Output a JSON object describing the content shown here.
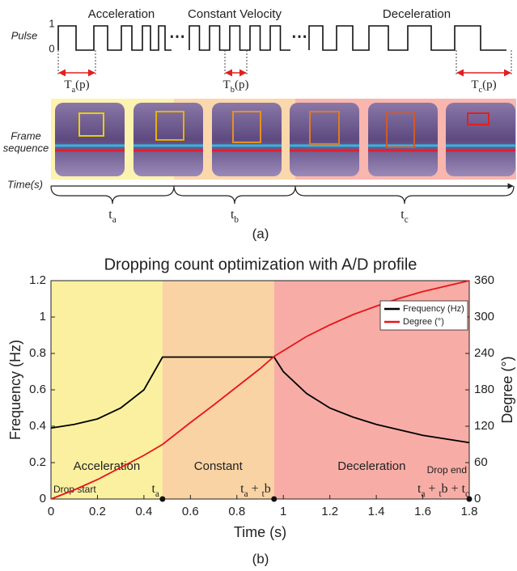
{
  "figure_a": {
    "phases": [
      "Acceleration",
      "Constant Velocity",
      "Deceleration"
    ],
    "pulse_label": "Pulse",
    "levels": [
      "1",
      "0"
    ],
    "gaps": [
      "⋯",
      "⋯"
    ],
    "periods": [
      [
        "T",
        "a",
        "(p)"
      ],
      [
        "T",
        "b",
        "(p)"
      ],
      [
        "T",
        "c",
        "(p)"
      ]
    ],
    "frame_label": [
      "Frame",
      "sequence"
    ],
    "time_label": "Time(s)",
    "durations": [
      [
        "t",
        "a"
      ],
      [
        "t",
        "b"
      ],
      [
        "t",
        "c"
      ]
    ],
    "caption": "(a)"
  },
  "chart_data": {
    "type": "line",
    "title": "Dropping count optimization with A/D profile",
    "xlabel": "Time (s)",
    "ylabel": "Frequency (Hz)",
    "y2label": "Degree (°)",
    "xlim": [
      0,
      1.8
    ],
    "xticks": [
      0,
      0.2,
      0.4,
      0.6,
      0.8,
      1,
      1.2,
      1.4,
      1.6,
      1.8
    ],
    "ylim": [
      0,
      1.2
    ],
    "yticks": [
      0,
      0.2,
      0.4,
      0.6,
      0.8,
      1,
      1.2
    ],
    "y2lim": [
      0,
      360
    ],
    "y2ticks": [
      0,
      60,
      120,
      180,
      240,
      300,
      360
    ],
    "legend": "upper right",
    "series": [
      {
        "name": "Frequency (Hz)",
        "color": "#000000",
        "x": [
          0,
          0.1,
          0.2,
          0.3,
          0.4,
          0.48,
          0.96,
          1.0,
          1.1,
          1.2,
          1.3,
          1.4,
          1.5,
          1.6,
          1.7,
          1.8
        ],
        "values": [
          0.39,
          0.41,
          0.44,
          0.5,
          0.6,
          0.78,
          0.78,
          0.7,
          0.58,
          0.5,
          0.45,
          0.41,
          0.38,
          0.35,
          0.33,
          0.31
        ]
      },
      {
        "name": "Degree (°)",
        "color": "#e8141b",
        "axis": "y2",
        "x": [
          0,
          0.1,
          0.2,
          0.3,
          0.4,
          0.48,
          0.6,
          0.7,
          0.8,
          0.9,
          0.96,
          1.1,
          1.2,
          1.3,
          1.4,
          1.5,
          1.6,
          1.7,
          1.8
        ],
        "values": [
          0,
          15,
          32,
          52,
          72,
          90,
          126,
          155,
          185,
          215,
          235,
          268,
          287,
          304,
          318,
          331,
          342,
          351,
          360
        ]
      }
    ],
    "regions": [
      {
        "name": "Acceleration",
        "range": [
          0,
          0.48
        ],
        "color": "#faf0a0"
      },
      {
        "name": "Constant",
        "range": [
          0.48,
          0.96
        ],
        "color": "#f9d3a3"
      },
      {
        "name": "Deceleration",
        "range": [
          0.96,
          1.8
        ],
        "color": "#f7ada6"
      }
    ],
    "markers": [
      {
        "x": 0.48,
        "parts": [
          "t",
          "a"
        ]
      },
      {
        "x": 0.96,
        "parts": [
          "t",
          "a",
          " + ",
          "t",
          "b"
        ]
      },
      {
        "x": 1.8,
        "parts": [
          "t",
          "a",
          " + ",
          "t",
          "b",
          " + ",
          "t",
          "c"
        ]
      }
    ],
    "annotations": [
      "Drop start",
      "Drop end"
    ],
    "caption": "(b)"
  }
}
